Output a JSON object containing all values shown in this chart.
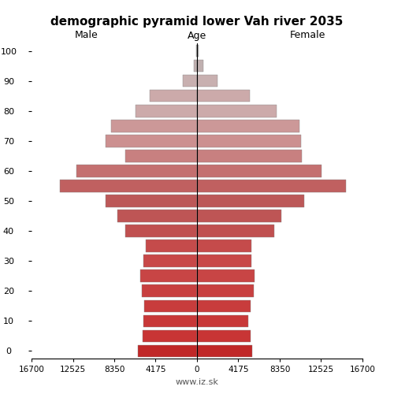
{
  "title": "demographic pyramid lower Vah river 2035",
  "xlabel_left": "Male",
  "xlabel_right": "Female",
  "xlabel_center": "Age",
  "footer": "www.iz.sk",
  "age_groups": [
    0,
    5,
    10,
    15,
    20,
    25,
    30,
    35,
    40,
    45,
    50,
    55,
    60,
    65,
    70,
    75,
    80,
    85,
    90,
    95,
    100
  ],
  "male": [
    6000,
    5500,
    5400,
    5300,
    5600,
    5700,
    5400,
    5200,
    7200,
    8000,
    9200,
    13800,
    12200,
    7200,
    9200,
    8700,
    6200,
    4800,
    1400,
    280,
    45
  ],
  "female": [
    5600,
    5400,
    5200,
    5400,
    5700,
    5800,
    5500,
    5500,
    7800,
    8500,
    10800,
    15000,
    12600,
    10600,
    10500,
    10300,
    8000,
    5300,
    2100,
    650,
    140
  ],
  "xlim": 16700,
  "xticks": [
    0,
    4175,
    8350,
    12525,
    16700
  ],
  "colors_by_age": {
    "100": "#c0c0c0",
    "95": "#c0b0b0",
    "90": "#c8b0b0",
    "85": "#ccaaaa",
    "80": "#ccaaaa",
    "75": "#cc9898",
    "70": "#cc9898",
    "65": "#c88888",
    "60": "#c47878",
    "55": "#c46868",
    "50": "#c06060",
    "45": "#c06060",
    "40": "#c05858",
    "35": "#cc5555",
    "30": "#cc5050",
    "25": "#cc4d4d",
    "20": "#cc4848",
    "15": "#cc4545",
    "10": "#c84040",
    "5": "#c83c3c",
    "0": "#c43030"
  },
  "background": "#ffffff"
}
